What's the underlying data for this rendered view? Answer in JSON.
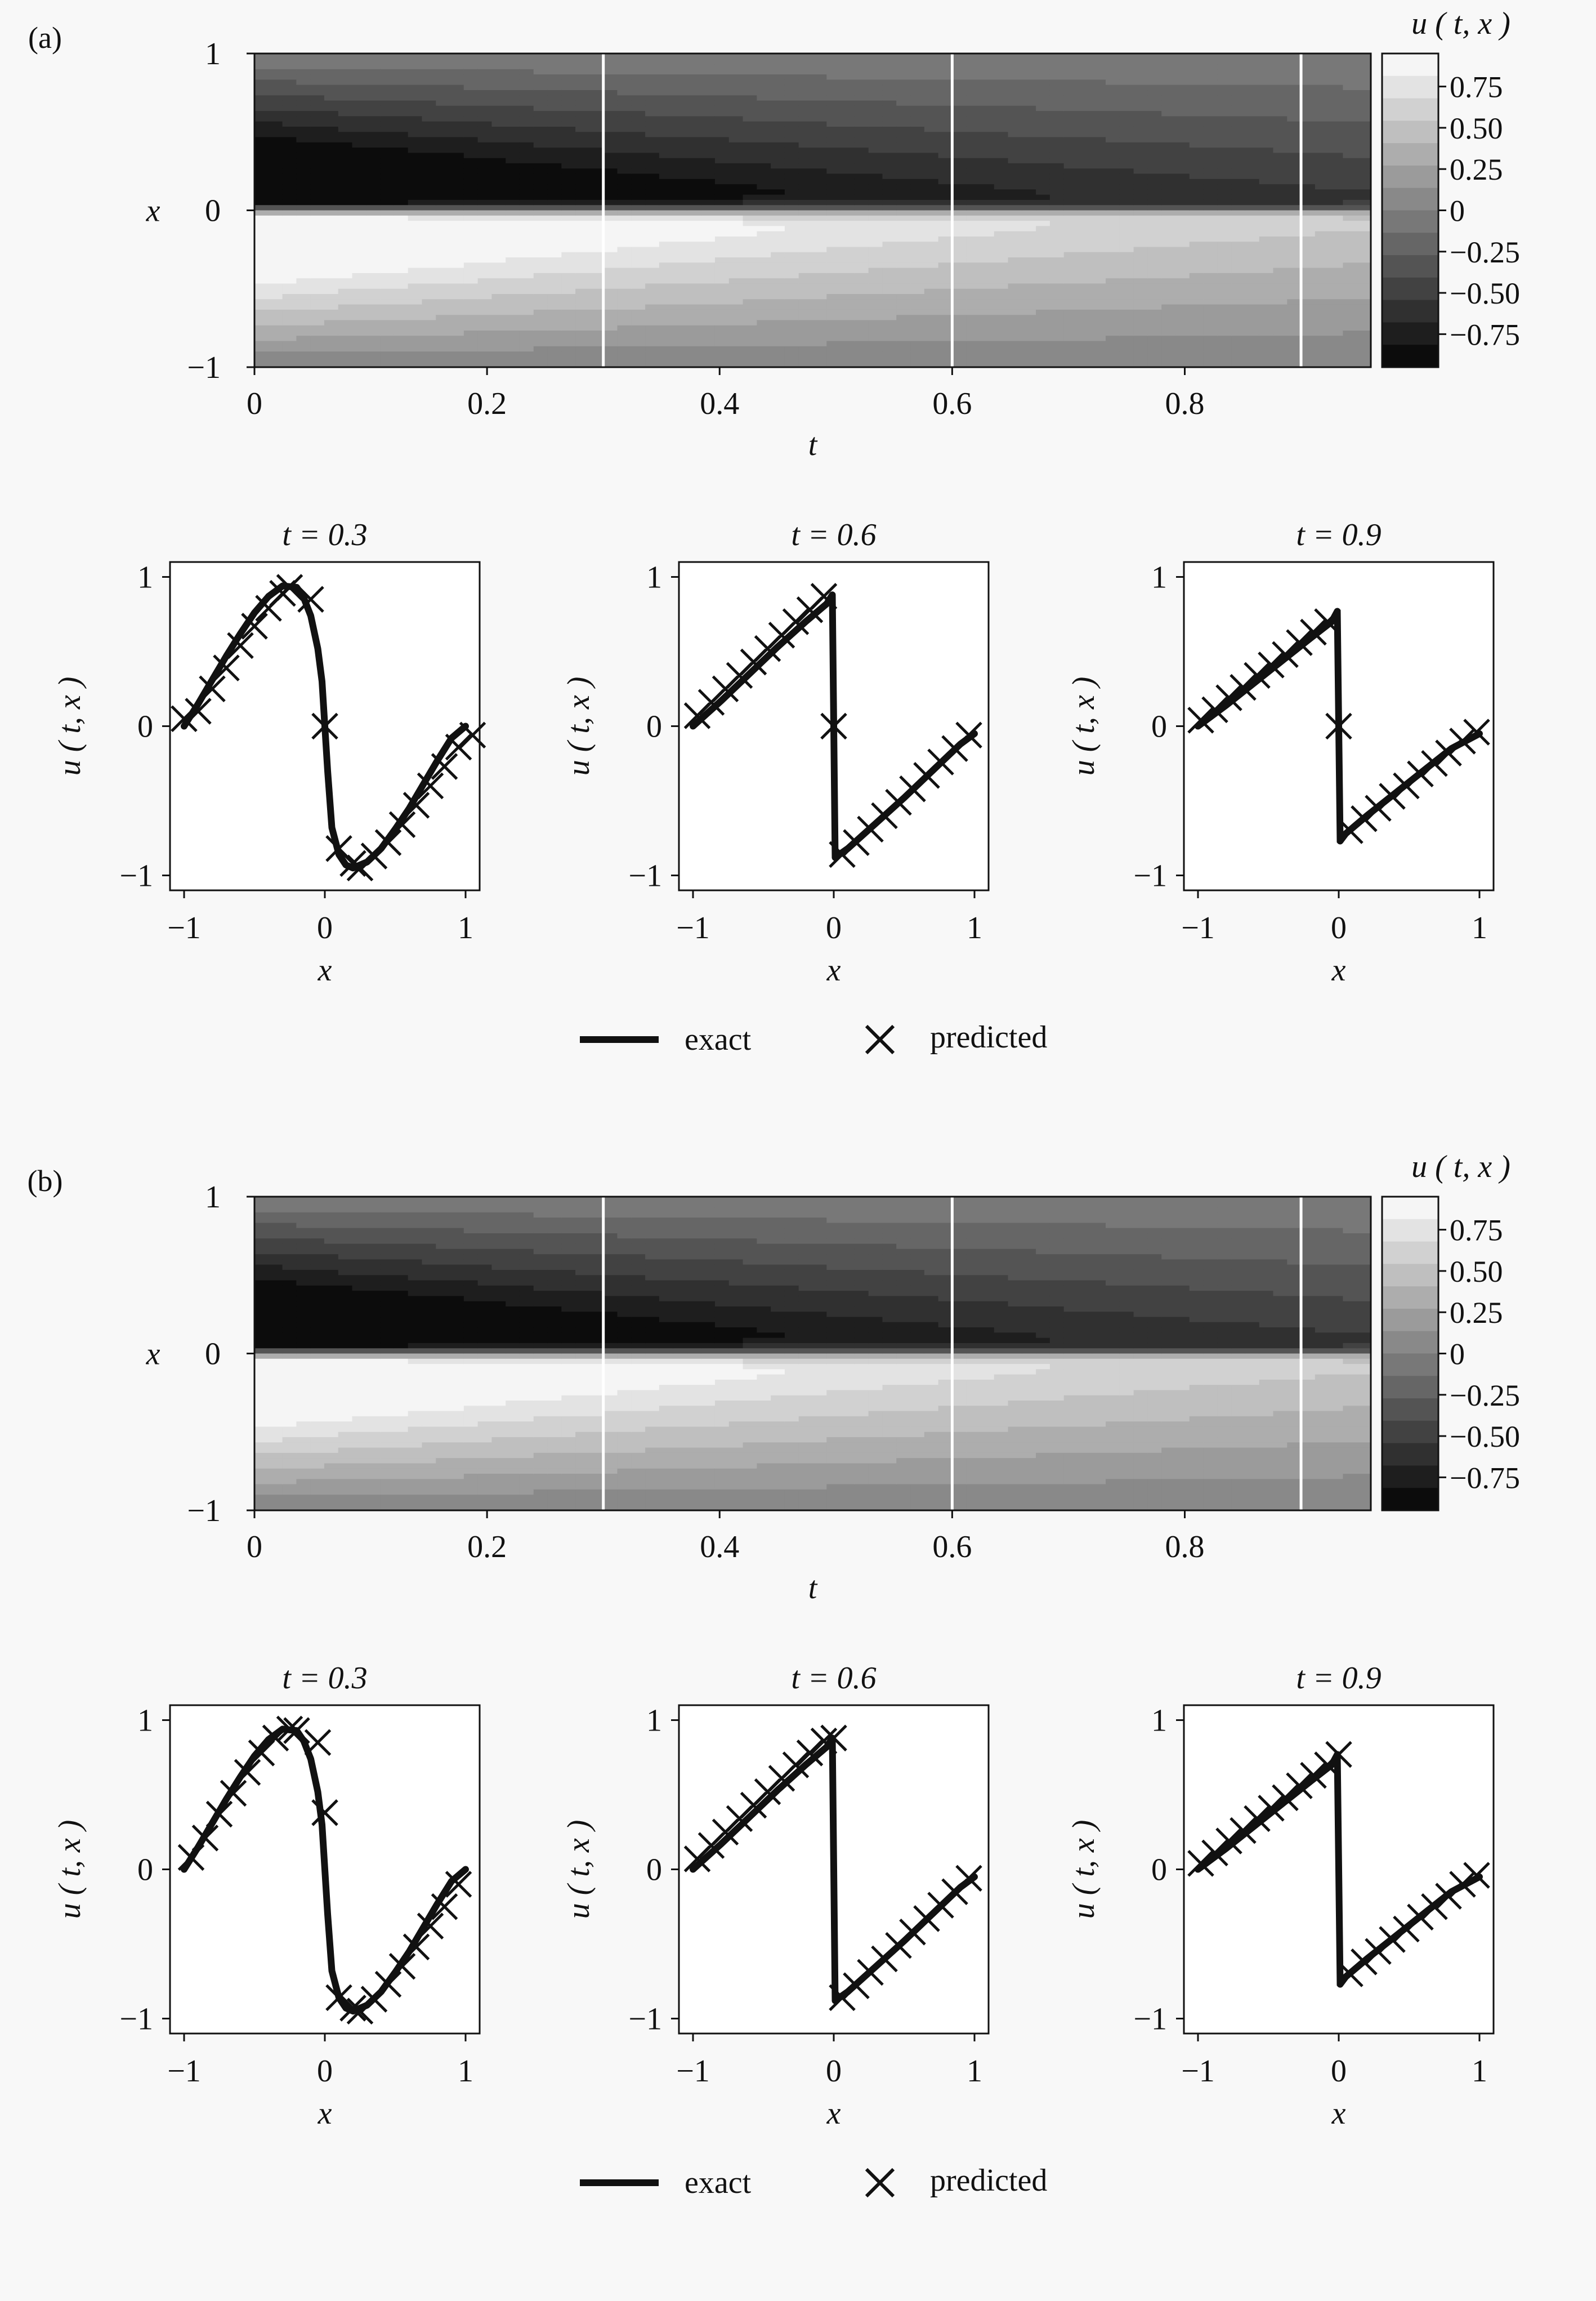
{
  "figure": {
    "legend": {
      "exact_label": "exact",
      "predicted_label": "predicted"
    }
  },
  "chart_data": [
    {
      "panel_label": "(a)",
      "heatmap": {
        "type": "heatmap",
        "xlabel": "t",
        "ylabel": "x",
        "xlim": [
          0,
          0.96
        ],
        "ylim": [
          -1,
          1
        ],
        "x_ticks": [
          "0",
          "0.2",
          "0.4",
          "0.6",
          "0.8"
        ],
        "x_tick_values": [
          0,
          0.2,
          0.4,
          0.6,
          0.8
        ],
        "y_ticks": [
          "−1",
          "0",
          "1"
        ],
        "y_tick_values": [
          -1,
          0,
          1
        ],
        "slice_lines_t": [
          0.3,
          0.6,
          0.9
        ],
        "colorbar": {
          "title": "u ( t, x )",
          "range": [
            -0.95,
            0.95
          ],
          "levels": 14,
          "ticks": [
            "0.75",
            "0.50",
            "0.25",
            "0",
            "−0.25",
            "−0.50",
            "−0.75"
          ],
          "tick_values": [
            0.75,
            0.5,
            0.25,
            0,
            -0.25,
            -0.5,
            -0.75
          ]
        }
      },
      "slices": [
        {
          "type": "line",
          "title": "t = 0.3",
          "xlabel": "x",
          "ylabel": "u ( t, x )",
          "xlim": [
            -1.1,
            1.1
          ],
          "ylim": [
            -1.1,
            1.1
          ],
          "x_ticks": [
            "−1",
            "0",
            "1"
          ],
          "y_ticks": [
            "−1",
            "0",
            "1"
          ],
          "series": [
            {
              "name": "exact",
              "x": [
                -1.0,
                -0.9,
                -0.8,
                -0.7,
                -0.6,
                -0.5,
                -0.4,
                -0.3,
                -0.2,
                -0.15,
                -0.1,
                -0.05,
                -0.02,
                0.0,
                0.02,
                0.05,
                0.1,
                0.15,
                0.2,
                0.3,
                0.4,
                0.5,
                0.6,
                0.7,
                0.8,
                0.9,
                1.0
              ],
              "y": [
                0.0,
                0.15,
                0.31,
                0.47,
                0.62,
                0.76,
                0.87,
                0.94,
                0.93,
                0.86,
                0.74,
                0.52,
                0.3,
                0.0,
                -0.3,
                -0.68,
                -0.86,
                -0.93,
                -0.95,
                -0.91,
                -0.82,
                -0.69,
                -0.55,
                -0.39,
                -0.23,
                -0.08,
                0.0
              ]
            },
            {
              "name": "predicted",
              "x": [
                -1.0,
                -0.9,
                -0.8,
                -0.7,
                -0.6,
                -0.5,
                -0.4,
                -0.3,
                -0.25,
                -0.1,
                0.0,
                0.1,
                0.2,
                0.25,
                0.35,
                0.45,
                0.55,
                0.65,
                0.75,
                0.85,
                0.95,
                1.05
              ],
              "y": [
                0.05,
                0.1,
                0.25,
                0.39,
                0.54,
                0.67,
                0.79,
                0.89,
                0.93,
                0.85,
                0.0,
                -0.82,
                -0.92,
                -0.95,
                -0.87,
                -0.78,
                -0.66,
                -0.53,
                -0.4,
                -0.27,
                -0.14,
                -0.06
              ]
            }
          ]
        },
        {
          "type": "line",
          "title": "t = 0.6",
          "xlabel": "x",
          "ylabel": "u ( t, x )",
          "xlim": [
            -1.1,
            1.1
          ],
          "ylim": [
            -1.1,
            1.1
          ],
          "x_ticks": [
            "−1",
            "0",
            "1"
          ],
          "y_ticks": [
            "−1",
            "0",
            "1"
          ],
          "series": [
            {
              "name": "exact",
              "x": [
                -1.0,
                -0.8,
                -0.6,
                -0.4,
                -0.2,
                -0.05,
                -0.01,
                0.01,
                0.1,
                0.3,
                0.5,
                0.7,
                0.9,
                1.0
              ],
              "y": [
                0.0,
                0.17,
                0.35,
                0.53,
                0.7,
                0.82,
                0.88,
                -0.88,
                -0.82,
                -0.65,
                -0.48,
                -0.3,
                -0.12,
                -0.05
              ]
            },
            {
              "name": "predicted",
              "x": [
                -0.97,
                -0.87,
                -0.77,
                -0.67,
                -0.57,
                -0.47,
                -0.37,
                -0.27,
                -0.17,
                -0.07,
                0.0,
                0.06,
                0.16,
                0.26,
                0.36,
                0.46,
                0.56,
                0.66,
                0.76,
                0.86,
                0.96
              ],
              "y": [
                0.07,
                0.16,
                0.25,
                0.34,
                0.43,
                0.52,
                0.61,
                0.7,
                0.78,
                0.87,
                0.0,
                -0.86,
                -0.78,
                -0.69,
                -0.6,
                -0.51,
                -0.42,
                -0.33,
                -0.24,
                -0.15,
                -0.06
              ]
            }
          ]
        },
        {
          "type": "line",
          "title": "t = 0.9",
          "xlabel": "x",
          "ylabel": "u ( t, x )",
          "xlim": [
            -1.1,
            1.1
          ],
          "ylim": [
            -1.1,
            1.1
          ],
          "x_ticks": [
            "−1",
            "0",
            "1"
          ],
          "y_ticks": [
            "−1",
            "0",
            "1"
          ],
          "series": [
            {
              "name": "exact",
              "x": [
                -1.0,
                -0.8,
                -0.6,
                -0.4,
                -0.2,
                -0.05,
                -0.01,
                0.01,
                0.05,
                0.2,
                0.4,
                0.6,
                0.8,
                1.0
              ],
              "y": [
                0.0,
                0.14,
                0.29,
                0.44,
                0.59,
                0.7,
                0.77,
                -0.77,
                -0.72,
                -0.6,
                -0.45,
                -0.3,
                -0.15,
                -0.05
              ]
            },
            {
              "name": "predicted",
              "x": [
                -0.98,
                -0.88,
                -0.78,
                -0.68,
                -0.58,
                -0.48,
                -0.38,
                -0.28,
                -0.18,
                -0.08,
                0.0,
                0.08,
                0.18,
                0.28,
                0.38,
                0.48,
                0.58,
                0.68,
                0.78,
                0.88,
                0.98
              ],
              "y": [
                0.04,
                0.11,
                0.19,
                0.26,
                0.34,
                0.41,
                0.48,
                0.56,
                0.63,
                0.7,
                0.0,
                -0.7,
                -0.62,
                -0.55,
                -0.47,
                -0.4,
                -0.32,
                -0.25,
                -0.18,
                -0.1,
                -0.04
              ]
            }
          ]
        }
      ]
    },
    {
      "panel_label": "(b)",
      "heatmap": {
        "type": "heatmap",
        "xlabel": "t",
        "ylabel": "x",
        "xlim": [
          0,
          0.96
        ],
        "ylim": [
          -1,
          1
        ],
        "x_ticks": [
          "0",
          "0.2",
          "0.4",
          "0.6",
          "0.8"
        ],
        "x_tick_values": [
          0,
          0.2,
          0.4,
          0.6,
          0.8
        ],
        "y_ticks": [
          "−1",
          "0",
          "1"
        ],
        "y_tick_values": [
          -1,
          0,
          1
        ],
        "slice_lines_t": [
          0.3,
          0.6,
          0.9
        ],
        "colorbar": {
          "title": "u ( t, x )",
          "range": [
            -0.95,
            0.95
          ],
          "levels": 14,
          "ticks": [
            "0.75",
            "0.50",
            "0.25",
            "0",
            "−0.25",
            "−0.50",
            "−0.75"
          ],
          "tick_values": [
            0.75,
            0.5,
            0.25,
            0,
            -0.25,
            -0.5,
            -0.75
          ]
        }
      },
      "slices": [
        {
          "type": "line",
          "title": "t = 0.3",
          "xlabel": "x",
          "ylabel": "u ( t, x )",
          "xlim": [
            -1.1,
            1.1
          ],
          "ylim": [
            -1.1,
            1.1
          ],
          "x_ticks": [
            "−1",
            "0",
            "1"
          ],
          "y_ticks": [
            "−1",
            "0",
            "1"
          ],
          "series": [
            {
              "name": "exact",
              "x": [
                -1.0,
                -0.9,
                -0.8,
                -0.7,
                -0.6,
                -0.5,
                -0.4,
                -0.3,
                -0.2,
                -0.15,
                -0.1,
                -0.05,
                -0.02,
                0.0,
                0.02,
                0.05,
                0.1,
                0.15,
                0.2,
                0.3,
                0.4,
                0.5,
                0.6,
                0.7,
                0.8,
                0.9,
                1.0
              ],
              "y": [
                0.0,
                0.15,
                0.31,
                0.47,
                0.62,
                0.76,
                0.87,
                0.94,
                0.93,
                0.86,
                0.74,
                0.52,
                0.3,
                0.0,
                -0.3,
                -0.68,
                -0.86,
                -0.93,
                -0.95,
                -0.91,
                -0.82,
                -0.69,
                -0.55,
                -0.39,
                -0.23,
                -0.08,
                0.0
              ]
            },
            {
              "name": "predicted",
              "x": [
                -0.95,
                -0.85,
                -0.75,
                -0.65,
                -0.55,
                -0.45,
                -0.35,
                -0.25,
                -0.2,
                -0.05,
                0.0,
                0.1,
                0.2,
                0.25,
                0.35,
                0.45,
                0.55,
                0.65,
                0.75,
                0.85,
                0.95
              ],
              "y": [
                0.08,
                0.21,
                0.37,
                0.51,
                0.65,
                0.78,
                0.88,
                0.94,
                0.93,
                0.85,
                0.38,
                -0.86,
                -0.93,
                -0.95,
                -0.87,
                -0.77,
                -0.65,
                -0.52,
                -0.38,
                -0.25,
                -0.1
              ]
            }
          ]
        },
        {
          "type": "line",
          "title": "t = 0.6",
          "xlabel": "x",
          "ylabel": "u ( t, x )",
          "xlim": [
            -1.1,
            1.1
          ],
          "ylim": [
            -1.1,
            1.1
          ],
          "x_ticks": [
            "−1",
            "0",
            "1"
          ],
          "y_ticks": [
            "−1",
            "0",
            "1"
          ],
          "series": [
            {
              "name": "exact",
              "x": [
                -1.0,
                -0.8,
                -0.6,
                -0.4,
                -0.2,
                -0.05,
                -0.01,
                0.01,
                0.1,
                0.3,
                0.5,
                0.7,
                0.9,
                1.0
              ],
              "y": [
                0.0,
                0.17,
                0.35,
                0.53,
                0.7,
                0.82,
                0.88,
                -0.88,
                -0.82,
                -0.65,
                -0.48,
                -0.3,
                -0.12,
                -0.05
              ]
            },
            {
              "name": "predicted",
              "x": [
                -0.97,
                -0.87,
                -0.77,
                -0.67,
                -0.57,
                -0.47,
                -0.37,
                -0.27,
                -0.17,
                -0.07,
                0.0,
                0.06,
                0.16,
                0.26,
                0.36,
                0.46,
                0.56,
                0.66,
                0.76,
                0.86,
                0.96
              ],
              "y": [
                0.07,
                0.16,
                0.25,
                0.34,
                0.43,
                0.52,
                0.61,
                0.7,
                0.78,
                0.86,
                0.88,
                -0.86,
                -0.78,
                -0.69,
                -0.6,
                -0.51,
                -0.42,
                -0.33,
                -0.24,
                -0.15,
                -0.06
              ]
            }
          ]
        },
        {
          "type": "line",
          "title": "t = 0.9",
          "xlabel": "x",
          "ylabel": "u ( t, x )",
          "xlim": [
            -1.1,
            1.1
          ],
          "ylim": [
            -1.1,
            1.1
          ],
          "x_ticks": [
            "−1",
            "0",
            "1"
          ],
          "y_ticks": [
            "−1",
            "0",
            "1"
          ],
          "series": [
            {
              "name": "exact",
              "x": [
                -1.0,
                -0.8,
                -0.6,
                -0.4,
                -0.2,
                -0.05,
                -0.01,
                0.01,
                0.05,
                0.2,
                0.4,
                0.6,
                0.8,
                1.0
              ],
              "y": [
                0.0,
                0.14,
                0.29,
                0.44,
                0.59,
                0.7,
                0.77,
                -0.77,
                -0.72,
                -0.6,
                -0.45,
                -0.3,
                -0.15,
                -0.05
              ]
            },
            {
              "name": "predicted",
              "x": [
                -0.98,
                -0.88,
                -0.78,
                -0.68,
                -0.58,
                -0.48,
                -0.38,
                -0.28,
                -0.18,
                -0.08,
                0.0,
                0.08,
                0.18,
                0.28,
                0.38,
                0.48,
                0.58,
                0.68,
                0.78,
                0.88,
                0.98
              ],
              "y": [
                0.04,
                0.11,
                0.19,
                0.26,
                0.34,
                0.41,
                0.48,
                0.56,
                0.63,
                0.7,
                0.77,
                -0.7,
                -0.62,
                -0.55,
                -0.47,
                -0.4,
                -0.32,
                -0.25,
                -0.18,
                -0.1,
                -0.04
              ]
            }
          ]
        }
      ]
    }
  ]
}
